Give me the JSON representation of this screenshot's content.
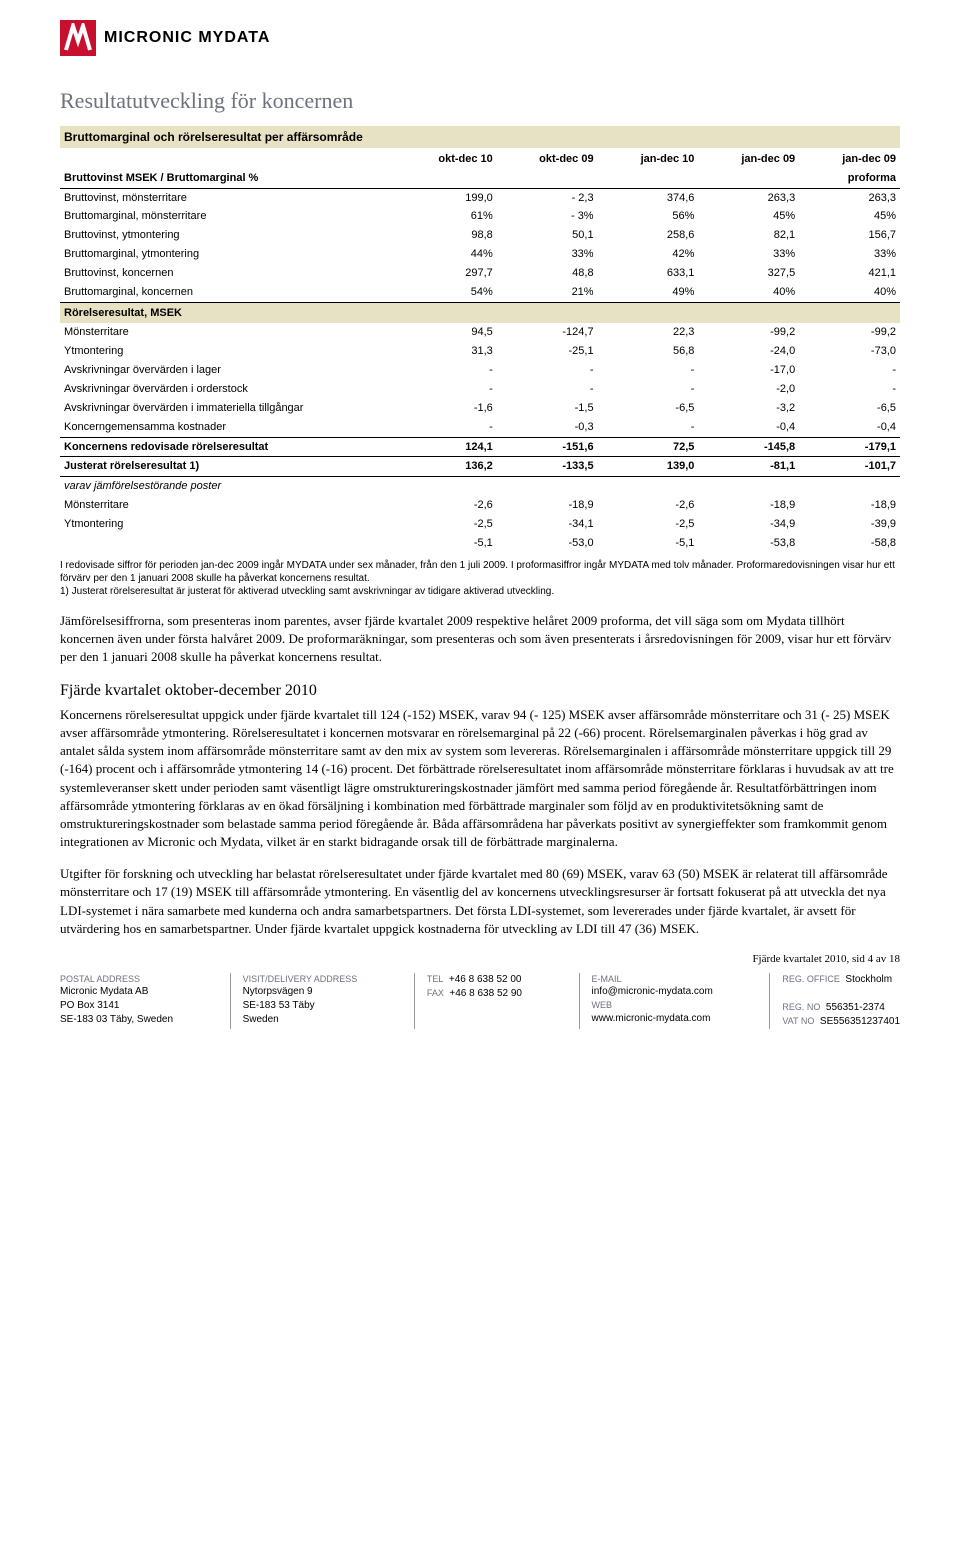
{
  "logo": {
    "brand": "MICRONIC MYDATA",
    "mark_color": "#c8102e"
  },
  "heading": "Resultatutveckling för koncernen",
  "table": {
    "title_bar": "Bruttomarginal och rörelseresultat per affärsområde",
    "col_headers": [
      "okt-dec 10",
      "okt-dec 09",
      "jan-dec 10",
      "jan-dec 09",
      "jan-dec 09"
    ],
    "proforma_label_left": "Bruttovinst MSEK / Bruttomarginal %",
    "proforma_label_right": "proforma",
    "rows_top": [
      {
        "label": "Bruttovinst, mönsterritare",
        "vals": [
          "199,0",
          "- 2,3",
          "374,6",
          "263,3",
          "263,3"
        ]
      },
      {
        "label": "Bruttomarginal, mönsterritare",
        "vals": [
          "61%",
          "- 3%",
          "56%",
          "45%",
          "45%"
        ]
      },
      {
        "label": "Bruttovinst, ytmontering",
        "vals": [
          "98,8",
          "50,1",
          "258,6",
          "82,1",
          "156,7"
        ]
      },
      {
        "label": "Bruttomarginal, ytmontering",
        "vals": [
          "44%",
          "33%",
          "42%",
          "33%",
          "33%"
        ]
      },
      {
        "label": "Bruttovinst, koncernen",
        "vals": [
          "297,7",
          "48,8",
          "633,1",
          "327,5",
          "421,1"
        ]
      },
      {
        "label": "Bruttomarginal, koncernen",
        "vals": [
          "54%",
          "21%",
          "49%",
          "40%",
          "40%"
        ]
      }
    ],
    "section2": "Rörelseresultat, MSEK",
    "rows_mid": [
      {
        "label": "Mönsterritare",
        "vals": [
          "94,5",
          "-124,7",
          "22,3",
          "-99,2",
          "-99,2"
        ]
      },
      {
        "label": "Ytmontering",
        "vals": [
          "31,3",
          "-25,1",
          "56,8",
          "-24,0",
          "-73,0"
        ]
      },
      {
        "label": "Avskrivningar övervärden i lager",
        "vals": [
          "-",
          "-",
          "-",
          "-17,0",
          "-"
        ]
      },
      {
        "label": "Avskrivningar övervärden i orderstock",
        "vals": [
          "-",
          "-",
          "-",
          "-2,0",
          "-"
        ]
      },
      {
        "label": "Avskrivningar övervärden i immateriella tillgångar",
        "vals": [
          "-1,6",
          "-1,5",
          "-6,5",
          "-3,2",
          "-6,5"
        ]
      },
      {
        "label": "Koncerngemensamma kostnader",
        "vals": [
          "-",
          "-0,3",
          "-",
          "-0,4",
          "-0,4"
        ]
      }
    ],
    "bold_rows": [
      {
        "label": "Koncernens redovisade rörelseresultat",
        "vals": [
          "124,1",
          "-151,6",
          "72,5",
          "-145,8",
          "-179,1"
        ]
      },
      {
        "label": "Justerat rörelseresultat 1)",
        "vals": [
          "136,2",
          "-133,5",
          "139,0",
          "-81,1",
          "-101,7"
        ]
      }
    ],
    "italic_label": "varav jämförelsestörande poster",
    "rows_bottom": [
      {
        "label": "Mönsterritare",
        "vals": [
          "-2,6",
          "-18,9",
          "-2,6",
          "-18,9",
          "-18,9"
        ]
      },
      {
        "label": "Ytmontering",
        "vals": [
          "-2,5",
          "-34,1",
          "-2,5",
          "-34,9",
          "-39,9"
        ]
      },
      {
        "label": "",
        "vals": [
          "-5,1",
          "-53,0",
          "-5,1",
          "-53,8",
          "-58,8"
        ]
      }
    ],
    "col_widths": [
      "40%",
      "12%",
      "12%",
      "12%",
      "12%",
      "12%"
    ],
    "bar_bg": "#e8e2c4"
  },
  "footnote": "I redovisade siffror för perioden jan-dec 2009 ingår MYDATA under sex månader, från den 1 juli 2009. I proformasiffror ingår MYDATA med tolv månader. Proformaredovisningen visar hur ett förvärv per den 1 januari 2008 skulle ha påverkat koncernens resultat.\n1) Justerat rörelseresultat är justerat för aktiverad utveckling samt avskrivningar av tidigare aktiverad utveckling.",
  "para1": "Jämförelsesiffrorna, som presenteras inom parentes, avser fjärde kvartalet 2009 respektive helåret 2009 proforma, det vill säga som om Mydata tillhört koncernen även under första halvåret 2009. De proforma­räkningar, som presenteras och som även presenterats i årsredovisningen för 2009, visar hur ett förvärv per den 1 januari 2008 skulle ha påverkat koncernens resultat.",
  "section_heading": "Fjärde kvartalet oktober-december 2010",
  "para2": "Koncernens rörelseresultat uppgick under fjärde kvartalet till 124 (-152) MSEK, varav 94 (- 125) MSEK avser affärsområde mönsterritare och 31 (- 25) MSEK avser affärsområde ytmontering. Rörelseresultatet i koncernen motsvarar en rörelsemarginal på 22 (-66) procent. Rörelsemarginalen påverkas i hög grad av antalet sålda system inom affärsområde mönsterritare samt av den mix av system som levereras. Rörelse­marginalen i affärsområde mönsterritare uppgick till 29 (-164) procent och i affärsområde ytmontering 14 (-16) procent. Det förbättrade rörelseresultatet inom affärsområde mönsterritare förklaras i huvudsak av att tre systemleveranser skett under perioden samt väsentligt lägre omstruktureringskostnader jämfört med samma period föregående år. Resultatförbättringen inom affärsområde ytmontering förklaras av en ökad försäljning i kombination med förbättrade marginaler som följd av en produktivitetsökning samt de omstruktureringskostnader som belastade samma period föregående år. Båda affärsområdena har påverkats positivt av synergieffekter som framkommit genom integrationen av Micronic och Mydata, vilket är en starkt bidragande orsak till de förbättrade marginalerna.",
  "para3": "Utgifter för forskning och utveckling har belastat rörelseresultatet under fjärde kvartalet med 80 (69) MSEK, varav 63 (50) MSEK är relaterat till affärsområde mönsterritare och 17 (19) MSEK till affärsområde ytmontering. En väsentlig del av koncernens utvecklingsresurser är fortsatt fokuserat på att utveckla det nya LDI-systemet i nära samarbete med kunderna och andra samarbetspartners. Det första LDI-systemet, som levererades under fjärde kvartalet, är avsett för utvärdering hos en samarbetspartner. Under fjärde kvartalet uppgick kostnaderna för utveckling av LDI till 47 (36) MSEK.",
  "page_num": "Fjärde kvartalet 2010, sid 4 av 18",
  "footer": {
    "postal": {
      "label": "POSTAL ADDRESS",
      "lines": [
        "Micronic Mydata AB",
        "PO Box 3141",
        "SE-183 03 Täby, Sweden"
      ]
    },
    "visit": {
      "label": "VISIT/DELIVERY ADDRESS",
      "lines": [
        "Nytorpsvägen 9",
        "SE-183 53 Täby",
        "Sweden"
      ]
    },
    "tel": {
      "label_tel": "TEL",
      "tel": "+46 8 638 52 00",
      "label_fax": "FAX",
      "fax": "+46 8 638 52 90"
    },
    "email": {
      "label": "E-MAIL",
      "value": "info@micronic-mydata.com",
      "label_web": "WEB",
      "web": "www.micronic-mydata.com"
    },
    "reg": {
      "label_office": "REG. OFFICE",
      "office": "Stockholm",
      "label_no": "REG. NO",
      "no": "556351-2374",
      "label_vat": "VAT NO",
      "vat": "SE556351237401"
    }
  }
}
